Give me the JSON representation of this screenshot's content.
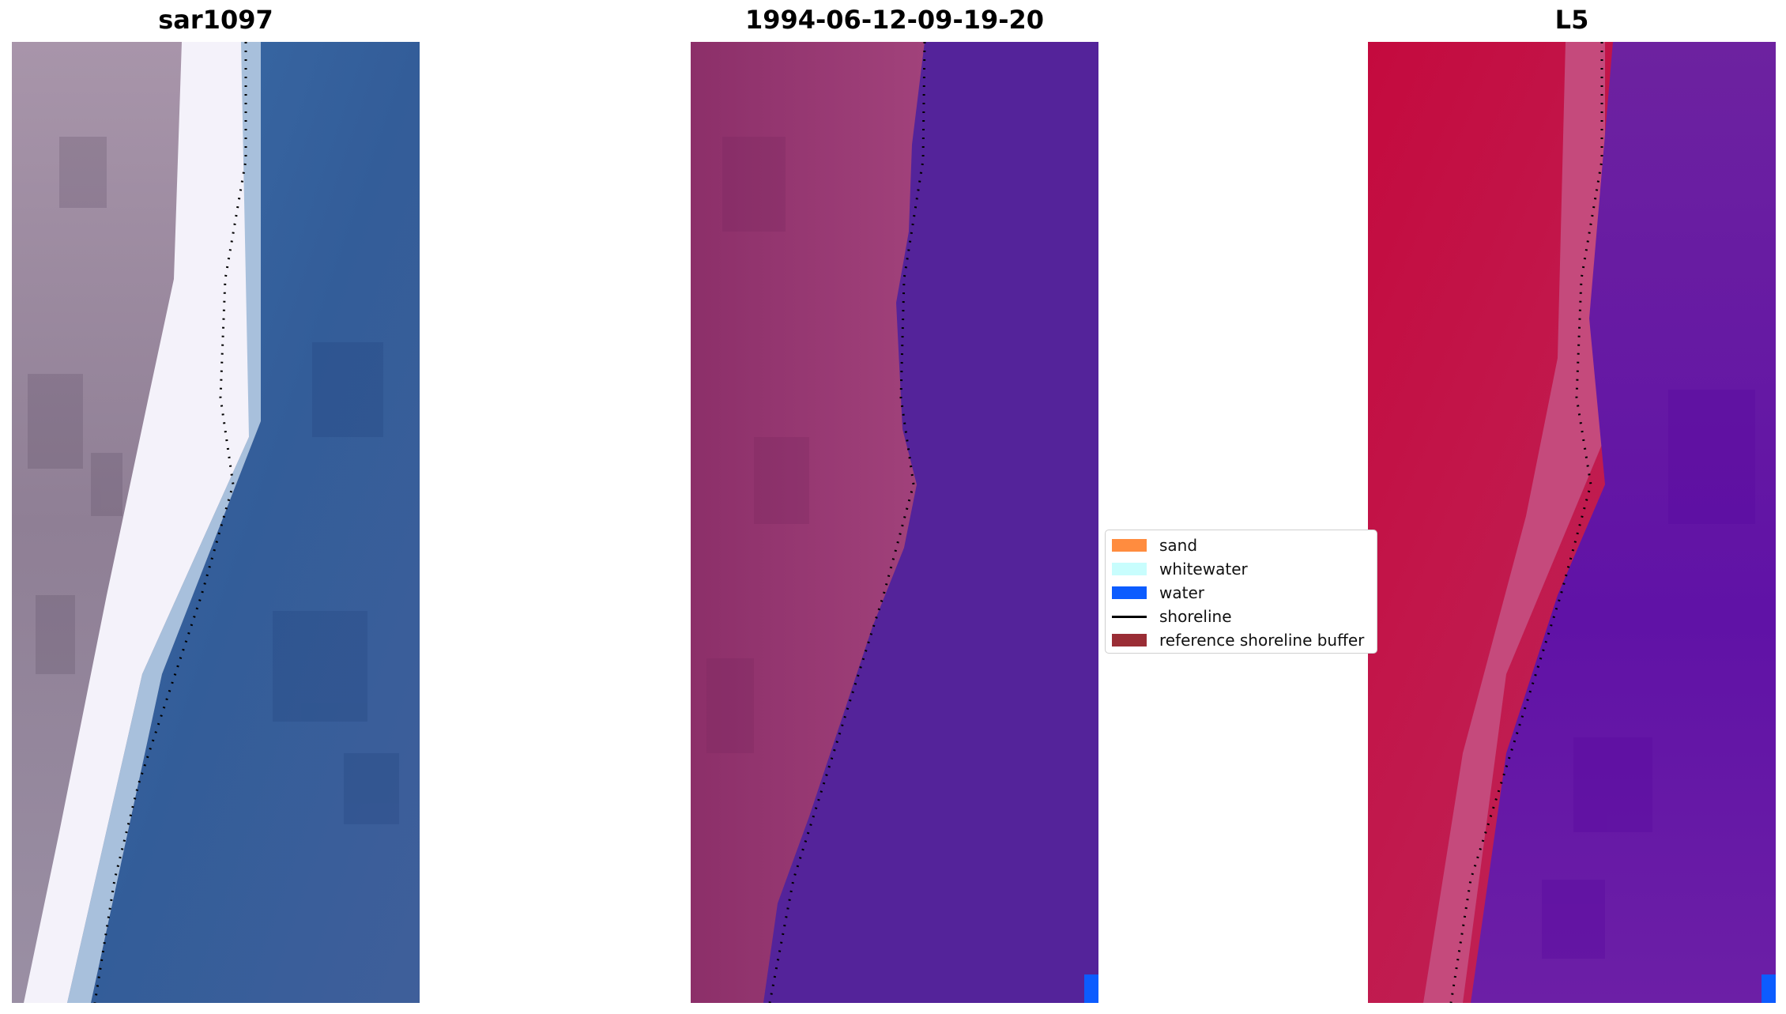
{
  "panels": [
    {
      "title": "sar1097"
    },
    {
      "title": "1994-06-12-09-19-20"
    },
    {
      "title": "L5"
    }
  ],
  "legend": {
    "items": [
      {
        "label": "sand",
        "color": "#ff8c3f",
        "kind": "patch"
      },
      {
        "label": "whitewater",
        "color": "#c8fdfd",
        "kind": "patch"
      },
      {
        "label": "water",
        "color": "#0c5cff",
        "kind": "patch"
      },
      {
        "label": "shoreline",
        "color": "#000000",
        "kind": "line"
      },
      {
        "label": "reference shoreline buffer",
        "color": "#9a2d35",
        "kind": "patch"
      }
    ]
  },
  "colors": {
    "land_rgb": "#a28fa3",
    "beach_white": "#f3f2fa",
    "sea_rgb": "#3a65a3",
    "classified_land": "#a03d7a",
    "classified_water": "#54239a",
    "mndwi_land": "#c3184d",
    "mndwi_water": "#6a1ba3",
    "water_tag": "#0c5cff"
  }
}
